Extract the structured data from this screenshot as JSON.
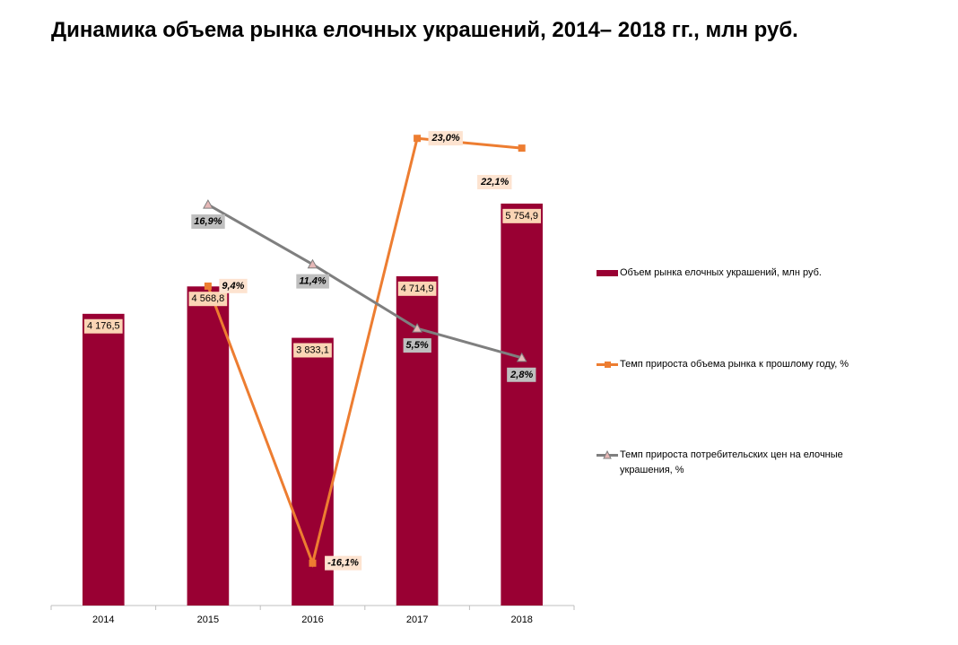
{
  "chart_data": {
    "type": "bar",
    "title": "Динамика объема рынка елочных украшений, 2014– 2018 гг., млн руб.",
    "categories": [
      "2014",
      "2015",
      "2016",
      "2017",
      "2018"
    ],
    "ylim": [
      0,
      7000
    ],
    "y2lim": [
      -20,
      25
    ],
    "series": [
      {
        "name": "Объем рынка елочных украшений, млн руб.",
        "type": "bar",
        "color": "#990033",
        "values": [
          4176.5,
          4568.8,
          3833.1,
          4714.9,
          5754.9
        ],
        "value_labels": [
          "4 176,5",
          "4 568,8",
          "3 833,1",
          "4 714,9",
          "5 754,9"
        ]
      },
      {
        "name": "Темп прироста объема рынка к прошлому году, %",
        "type": "line",
        "axis": "y2",
        "color": "#ed7d31",
        "marker": "square",
        "values": [
          null,
          9.4,
          -16.1,
          23.0,
          22.1
        ],
        "value_labels": [
          null,
          "9,4%",
          "-16,1%",
          "23,0%",
          "22,1%"
        ]
      },
      {
        "name": "Темп прироста потребительских цен на елочные украшения, %",
        "type": "line",
        "axis": "y2",
        "color": "#7f7f7f",
        "marker": "triangle",
        "values": [
          null,
          16.9,
          11.4,
          5.5,
          2.8
        ],
        "value_labels": [
          null,
          "16,9%",
          "11,4%",
          "5,5%",
          "2,8%"
        ]
      }
    ]
  }
}
